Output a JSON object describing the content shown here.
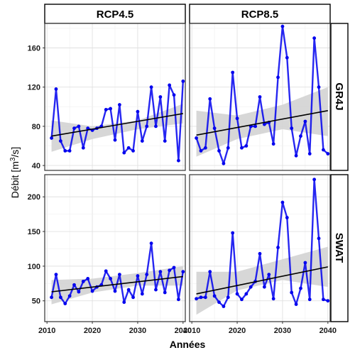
{
  "chart_data": {
    "type": "line",
    "title": "",
    "xlabel": "Années",
    "ylabel_prefix": "Débit [m",
    "ylabel_sup": "3",
    "ylabel_suffix": "/s]",
    "xlim": [
      2010,
      2040
    ],
    "xticks": [
      2010,
      2020,
      2030,
      2040
    ],
    "col_labels": [
      "RCP4.5",
      "RCP8.5"
    ],
    "row_labels": [
      "GR4J",
      "SWAT"
    ],
    "series_color": "#0000ee",
    "trend_color": "#000000",
    "ribbon_color": "#d3d3d3",
    "grid": true,
    "x": [
      2011,
      2012,
      2013,
      2014,
      2015,
      2016,
      2017,
      2018,
      2019,
      2020,
      2021,
      2022,
      2023,
      2024,
      2025,
      2026,
      2027,
      2028,
      2029,
      2030,
      2031,
      2032,
      2033,
      2034,
      2035,
      2036,
      2037,
      2038,
      2039,
      2040
    ],
    "rows": [
      {
        "label": "GR4J",
        "ylim": [
          35,
          185
        ],
        "yticks": [
          40,
          80,
          120,
          160
        ],
        "panels": [
          {
            "col": "RCP4.5",
            "values": [
              68,
              118,
              65,
              55,
              55,
              78,
              80,
              58,
              78,
              76,
              78,
              80,
              97,
              98,
              66,
              102,
              53,
              58,
              55,
              95,
              65,
              80,
              120,
              80,
              110,
              65,
              122,
              112,
              45,
              126
            ],
            "trend": [
              70,
              93
            ],
            "ribbon_lower": [
              54,
              67,
              77,
              83
            ],
            "ribbon_upper": [
              86,
              80,
              86,
              103
            ]
          },
          {
            "col": "RCP8.5",
            "values": [
              68,
              55,
              58,
              108,
              78,
              55,
              42,
              58,
              135,
              88,
              58,
              60,
              80,
              80,
              110,
              82,
              84,
              62,
              130,
              182,
              150,
              78,
              50,
              70,
              85,
              52,
              170,
              120,
              56,
              52
            ],
            "trend": [
              71,
              96
            ],
            "ribbon_lower": [
              49,
              67,
              77,
              70
            ],
            "ribbon_upper": [
              96,
              91,
              102,
              120
            ]
          }
        ]
      },
      {
        "label": "SWAT",
        "ylim": [
          20,
          232
        ],
        "yticks": [
          50,
          100,
          150,
          200
        ],
        "panels": [
          {
            "col": "RCP4.5",
            "values": [
              55,
              88,
              55,
              46,
              57,
              73,
              63,
              78,
              82,
              64,
              70,
              73,
              93,
              82,
              64,
              88,
              48,
              66,
              55,
              86,
              60,
              88,
              133,
              66,
              92,
              62,
              94,
              98,
              52,
              92
            ],
            "trend": [
              63,
              85
            ],
            "ribbon_lower": [
              45,
              62,
              72,
              72
            ],
            "ribbon_upper": [
              80,
              82,
              90,
              100
            ]
          },
          {
            "col": "RCP8.5",
            "values": [
              53,
              55,
              55,
              92,
              57,
              48,
              42,
              55,
              148,
              60,
              52,
              60,
              70,
              78,
              118,
              70,
              88,
              53,
              127,
              192,
              170,
              62,
              45,
              68,
              105,
              52,
              225,
              140,
              52,
              50
            ],
            "trend": [
              60,
              99
            ],
            "ribbon_lower": [
              30,
              65,
              80,
              70
            ],
            "ribbon_upper": [
              92,
              92,
              110,
              128
            ]
          }
        ]
      }
    ]
  }
}
